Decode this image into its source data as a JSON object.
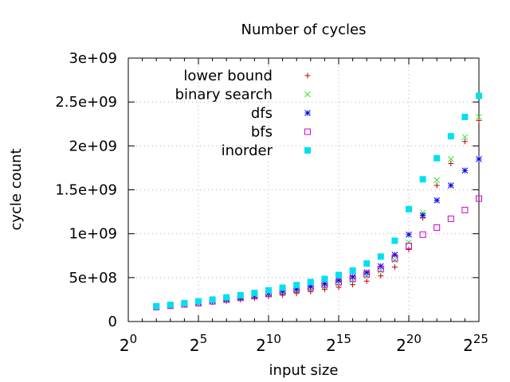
{
  "chart_data": {
    "type": "scatter",
    "title": "Number of cycles",
    "xlabel": "input size",
    "ylabel": "cycle count",
    "x_scale": "log2",
    "xlim": [
      1,
      25
    ],
    "ylim": [
      0,
      3000000000
    ],
    "x_ticks": [
      {
        "base": "2",
        "exp": "0"
      },
      {
        "base": "2",
        "exp": "5"
      },
      {
        "base": "2",
        "exp": "10"
      },
      {
        "base": "2",
        "exp": "15"
      },
      {
        "base": "2",
        "exp": "20"
      },
      {
        "base": "2",
        "exp": "25"
      }
    ],
    "x_tick_exponents": [
      0,
      5,
      10,
      15,
      20,
      25
    ],
    "y_ticks": [
      {
        "label": "0",
        "value": 0
      },
      {
        "label": "5e+08",
        "value": 500000000
      },
      {
        "label": "1e+09",
        "value": 1000000000
      },
      {
        "label": "1.5e+09",
        "value": 1500000000
      },
      {
        "label": "2e+09",
        "value": 2000000000
      },
      {
        "label": "2.5e+09",
        "value": 2500000000
      },
      {
        "label": "3e+09",
        "value": 3000000000
      }
    ],
    "grid": true,
    "legend_position": "top-left",
    "x_exponents": [
      2,
      3,
      4,
      5,
      6,
      7,
      8,
      9,
      10,
      11,
      12,
      13,
      14,
      15,
      16,
      17,
      18,
      19,
      20,
      21,
      22,
      23,
      24,
      25
    ],
    "series": [
      {
        "name": "lower bound",
        "marker": "plus",
        "color": "#c00000",
        "values": [
          160000000,
          175000000,
          190000000,
          200000000,
          220000000,
          235000000,
          250000000,
          265000000,
          285000000,
          300000000,
          320000000,
          340000000,
          365000000,
          390000000,
          420000000,
          460000000,
          520000000,
          620000000,
          820000000,
          1180000000,
          1550000000,
          1800000000,
          2050000000,
          2290000000
        ]
      },
      {
        "name": "binary search",
        "marker": "cross",
        "color": "#33e633",
        "values": [
          165000000,
          180000000,
          195000000,
          210000000,
          230000000,
          245000000,
          265000000,
          285000000,
          305000000,
          325000000,
          350000000,
          375000000,
          400000000,
          435000000,
          470000000,
          520000000,
          580000000,
          700000000,
          900000000,
          1240000000,
          1610000000,
          1850000000,
          2100000000,
          2330000000
        ]
      },
      {
        "name": "dfs",
        "marker": "asterisk",
        "color": "#0000ee",
        "values": [
          170000000,
          185000000,
          200000000,
          215000000,
          235000000,
          255000000,
          275000000,
          295000000,
          320000000,
          345000000,
          370000000,
          400000000,
          430000000,
          470000000,
          510000000,
          560000000,
          630000000,
          760000000,
          990000000,
          1210000000,
          1380000000,
          1550000000,
          1720000000,
          1850000000
        ]
      },
      {
        "name": "bfs",
        "marker": "square",
        "color": "#cc00cc",
        "values": [
          165000000,
          180000000,
          195000000,
          210000000,
          230000000,
          250000000,
          270000000,
          290000000,
          315000000,
          340000000,
          365000000,
          390000000,
          420000000,
          450000000,
          490000000,
          540000000,
          600000000,
          720000000,
          860000000,
          990000000,
          1070000000,
          1170000000,
          1270000000,
          1400000000
        ]
      },
      {
        "name": "inorder",
        "marker": "filled-square",
        "color": "#00e0ee",
        "values": [
          175000000,
          190000000,
          210000000,
          230000000,
          250000000,
          275000000,
          300000000,
          325000000,
          355000000,
          385000000,
          415000000,
          450000000,
          485000000,
          530000000,
          580000000,
          660000000,
          740000000,
          920000000,
          1280000000,
          1620000000,
          1860000000,
          2110000000,
          2330000000,
          2570000000
        ]
      }
    ]
  }
}
